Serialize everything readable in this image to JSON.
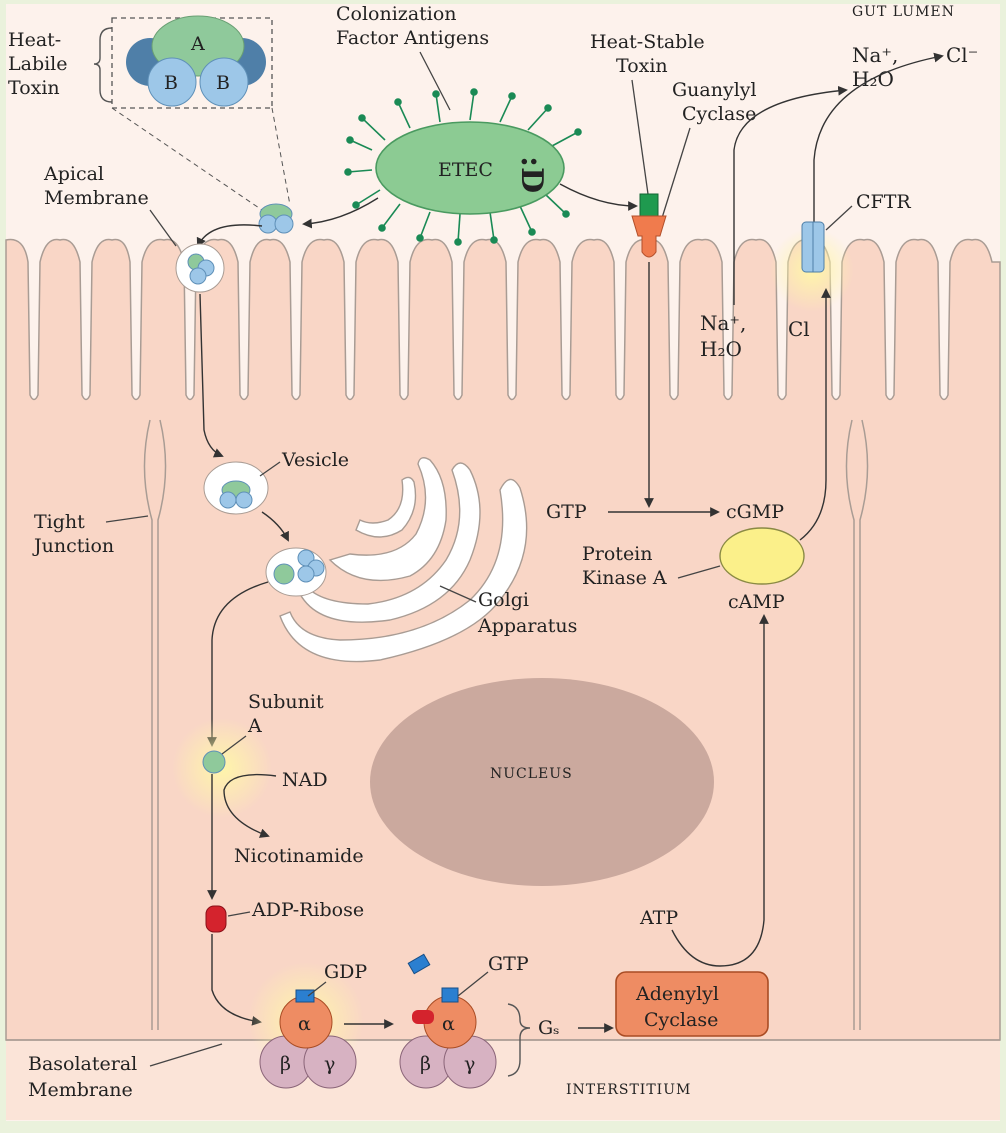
{
  "labels": {
    "gut_lumen": "GUT LUMEN",
    "heat_labile_1": "Heat-",
    "heat_labile_2": "Labile",
    "heat_labile_3": "Toxin",
    "subunit_A_letter": "A",
    "subunit_B_letter": "B",
    "colonization_1": "Colonization",
    "colonization_2": "Factor Antigens",
    "heat_stable_1": "Heat-Stable",
    "heat_stable_2": "Toxin",
    "guanylyl_1": "Guanylyl",
    "guanylyl_2": "Cyclase",
    "etec": "ETEC",
    "smiley": ":D",
    "na_lumen": "Na⁺,",
    "h2o_lumen": "H₂O",
    "cl_lumen": "Cl⁻",
    "cftr": "CFTR",
    "apical_1": "Apical",
    "apical_2": "Membrane",
    "na_cell": "Na⁺,",
    "h2o_cell": "H₂O",
    "cl_cell": "Cl",
    "vesicle": "Vesicle",
    "tight_1": "Tight",
    "tight_2": "Junction",
    "gtp_top": "GTP",
    "cgmp": "cGMP",
    "pka_1": "Protein",
    "pka_2": "Kinase A",
    "camp": "cAMP",
    "golgi_1": "Golgi",
    "golgi_2": "Apparatus",
    "subunit_1": "Subunit",
    "subunit_2": "A",
    "nad": "NAD",
    "nucleus": "NUCLEUS",
    "nicotinamide": "Nicotinamide",
    "adp_ribose": "ADP-Ribose",
    "atp": "ATP",
    "gdp": "GDP",
    "gtp_bottom": "GTP",
    "alpha": "α",
    "beta": "β",
    "gamma": "γ",
    "gs": "Gₛ",
    "adenylyl_1": "Adenylyl",
    "adenylyl_2": "Cyclase",
    "basolateral_1": "Basolateral",
    "basolateral_2": "Membrane",
    "interstitium": "INTERSTITIUM"
  },
  "colors": {
    "background": "#eaf2dc",
    "cell": "#f9d6c6",
    "lumen": "#fdf2ec",
    "toxin_A": "#8fc99b",
    "toxin_B": "#9dc7e8",
    "etec": "#8ccb93",
    "nucleus": "#cba99e",
    "alpha": "#ee8c63",
    "beta_gamma": "#d7b2c2",
    "adenylyl": "#ee8c63",
    "pka": "#fbf08a",
    "adp_ribose": "#d4232d"
  }
}
